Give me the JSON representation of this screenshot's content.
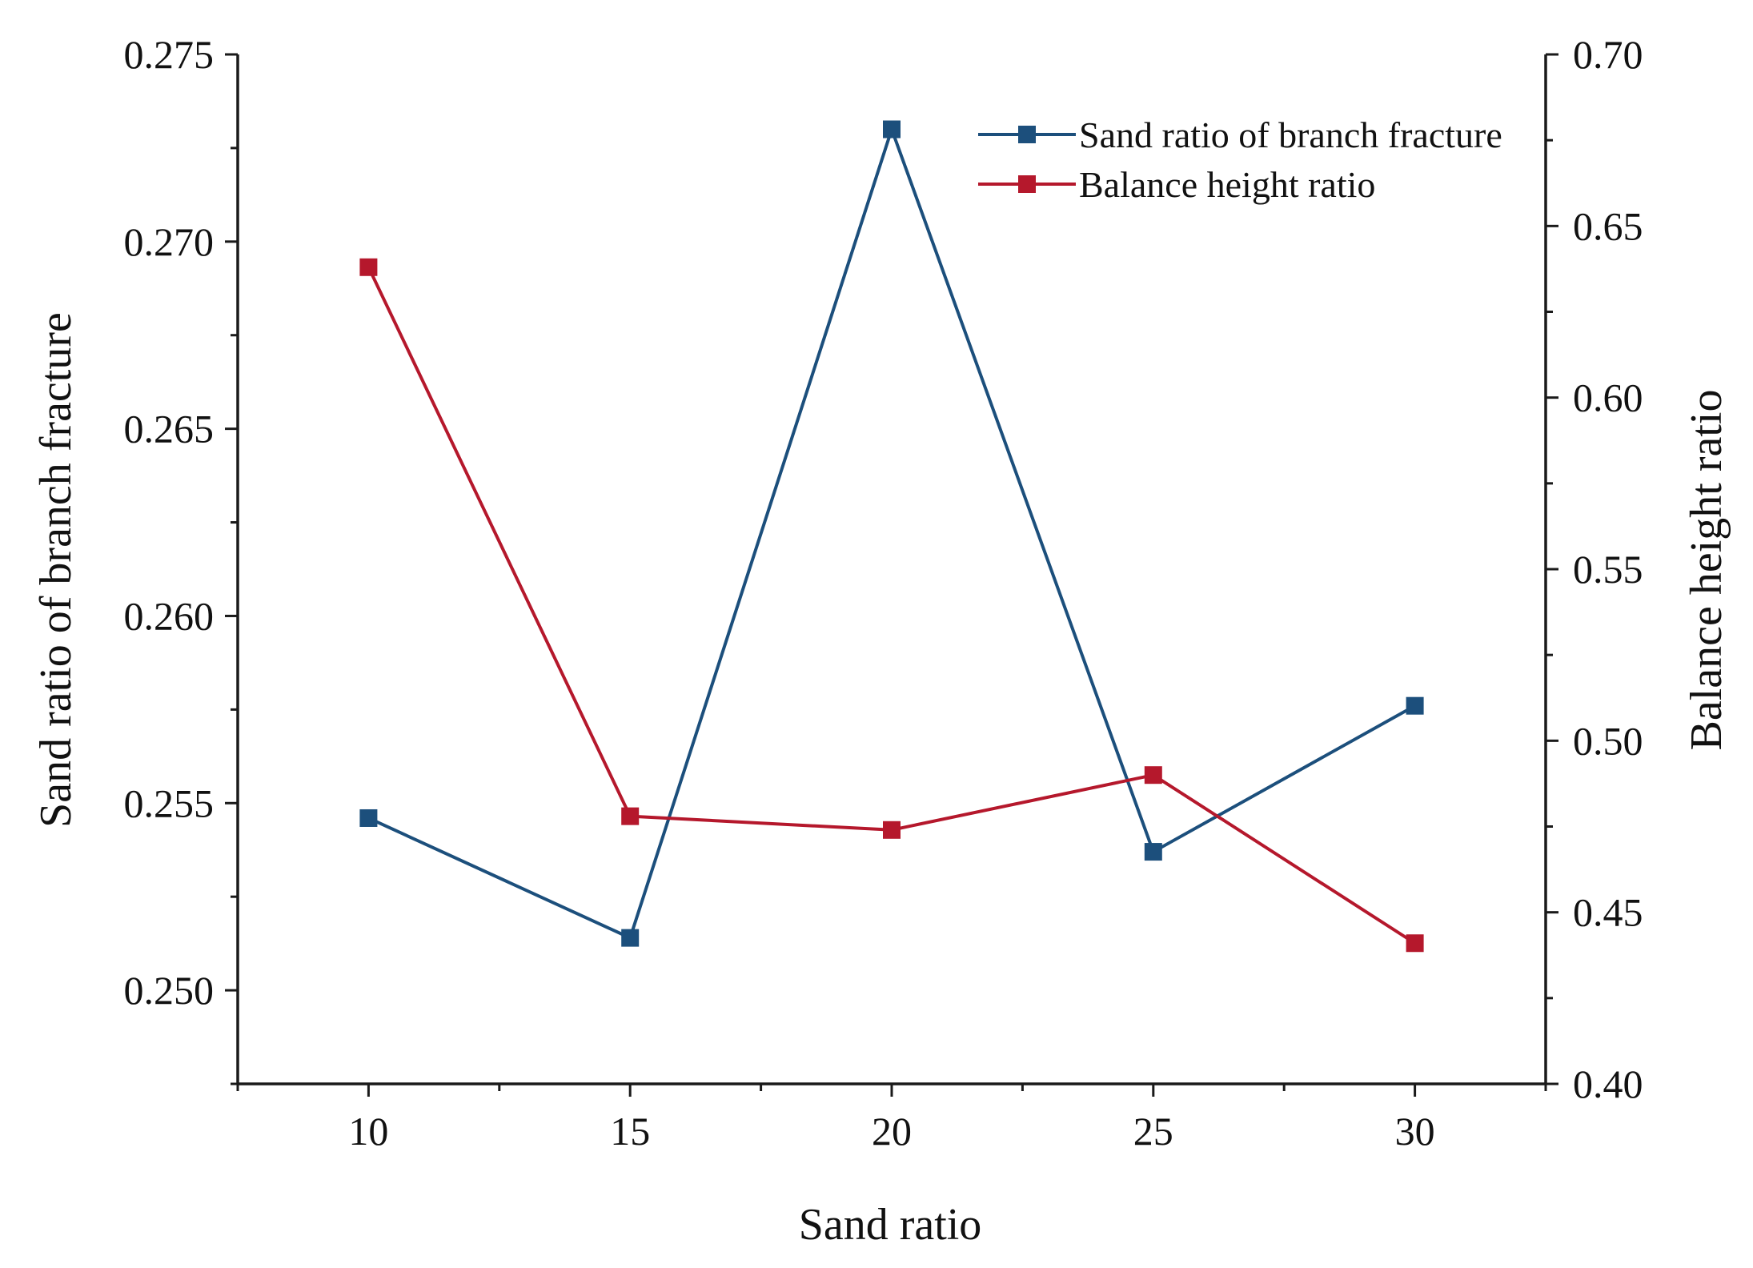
{
  "chart_data": {
    "type": "line",
    "x": [
      10,
      15,
      20,
      25,
      30
    ],
    "xlabel": "Sand ratio",
    "xlim": [
      7.5,
      32.5
    ],
    "x_ticks": [
      "10",
      "15",
      "20",
      "25",
      "30"
    ],
    "y_left": {
      "label": "Sand ratio of branch fracture",
      "ylim": [
        0.2475,
        0.275
      ],
      "ticks": [
        "0.250",
        "0.255",
        "0.260",
        "0.265",
        "0.270",
        "0.275"
      ]
    },
    "y_right": {
      "label": "Balance height ratio",
      "ylim": [
        0.4,
        0.7
      ],
      "ticks": [
        "0.40",
        "0.45",
        "0.50",
        "0.55",
        "0.60",
        "0.65",
        "0.70"
      ]
    },
    "series": [
      {
        "name": "Sand ratio of branch fracture",
        "axis": "left",
        "color": "#1c4f7c",
        "values": [
          0.2546,
          0.2514,
          0.273,
          0.2537,
          0.2576
        ]
      },
      {
        "name": "Balance height ratio",
        "axis": "right",
        "color": "#b5182c",
        "values": [
          0.638,
          0.478,
          0.474,
          0.49,
          0.441
        ]
      }
    ],
    "legend_position": "top-right",
    "grid": false
  }
}
